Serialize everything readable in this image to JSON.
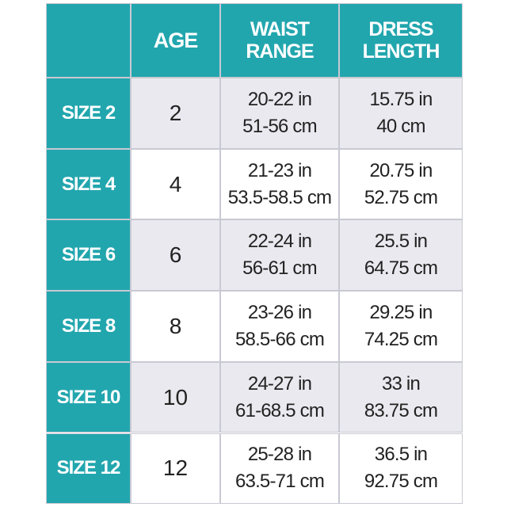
{
  "table": {
    "header": [
      "AGE",
      "WAIST RANGE",
      "DRESS LENGTH"
    ],
    "rows": [
      {
        "size": "SIZE 2",
        "age": "2",
        "waist": [
          "20-22 in",
          "51-56 cm"
        ],
        "length": [
          "15.75 in",
          "40 cm"
        ]
      },
      {
        "size": "SIZE 4",
        "age": "4",
        "waist": [
          "21-23 in",
          "53.5-58.5 cm"
        ],
        "length": [
          "20.75 in",
          "52.75 cm"
        ]
      },
      {
        "size": "SIZE 6",
        "age": "6",
        "waist": [
          "22-24 in",
          "56-61 cm"
        ],
        "length": [
          "25.5 in",
          "64.75 cm"
        ]
      },
      {
        "size": "SIZE 8",
        "age": "8",
        "waist": [
          "23-26 in",
          "58.5-66 cm"
        ],
        "length": [
          "29.25 in",
          "74.25 cm"
        ]
      },
      {
        "size": "SIZE 10",
        "age": "10",
        "waist": [
          "24-27 in",
          "61-68.5 cm"
        ],
        "length": [
          "33 in",
          "83.75 cm"
        ]
      },
      {
        "size": "SIZE 12",
        "age": "12",
        "waist": [
          "25-28 in",
          "63.5-71 cm"
        ],
        "length": [
          "36.5 in",
          "92.75 cm"
        ]
      }
    ]
  }
}
